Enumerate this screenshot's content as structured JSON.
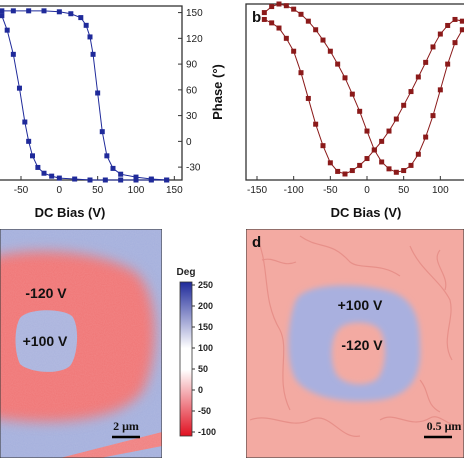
{
  "chart_data": [
    {
      "panel": "a",
      "type": "line",
      "xlabel": "DC Bias (V)",
      "xticks": [
        "-50",
        "0",
        "50",
        "100",
        "150"
      ],
      "xlim": [
        -80,
        160
      ],
      "ylim": [
        -30,
        150
      ],
      "color": "#1f2a9a",
      "series": [
        {
          "name": "",
          "x": [
            140,
            120,
            100,
            80,
            70,
            62,
            56,
            50,
            44,
            40,
            35,
            28,
            15,
            0,
            -20,
            -40,
            -60,
            -75
          ],
          "y": [
            -30,
            -29,
            -27,
            -24,
            -18,
            -5,
            20,
            60,
            100,
            118,
            130,
            138,
            142,
            144,
            145,
            145,
            145,
            145
          ]
        },
        {
          "name": "",
          "x": [
            -75,
            -68,
            -60,
            -52,
            -45,
            -40,
            -35,
            -28,
            -20,
            -10,
            0,
            20,
            40,
            60,
            80,
            100,
            120,
            140
          ],
          "y": [
            140,
            125,
            100,
            65,
            30,
            10,
            -5,
            -17,
            -23,
            -26,
            -28,
            -29,
            -30,
            -30,
            -30,
            -30,
            -30,
            -30
          ]
        }
      ]
    },
    {
      "panel": "b",
      "label": "b",
      "type": "line",
      "xlabel": "DC Bias (V)",
      "ylabel": "Phase (°)",
      "yticks": [
        "150",
        "120",
        "90",
        "60",
        "30",
        "0",
        "-30"
      ],
      "xticks": [
        "-150",
        "-100",
        "-50",
        "0",
        "50",
        "100"
      ],
      "xlim": [
        -165,
        135
      ],
      "ylim": [
        -45,
        160
      ],
      "color": "#8b1a1a",
      "series": [
        {
          "name": "",
          "x": [
            -140,
            -130,
            -120,
            -110,
            -100,
            -90,
            -80,
            -70,
            -60,
            -50,
            -40,
            -30,
            -20,
            -10,
            0,
            10,
            20,
            30,
            40,
            50,
            60,
            70,
            80,
            90,
            100,
            110,
            120,
            130
          ],
          "y": [
            150,
            157,
            160,
            158,
            154,
            148,
            140,
            130,
            118,
            105,
            90,
            74,
            55,
            35,
            12,
            -10,
            -24,
            -32,
            -36,
            -34,
            -28,
            -15,
            5,
            30,
            60,
            90,
            115,
            130
          ]
        },
        {
          "name": "",
          "x": [
            130,
            120,
            110,
            100,
            90,
            80,
            70,
            60,
            50,
            40,
            30,
            20,
            10,
            0,
            -10,
            -20,
            -30,
            -40,
            -50,
            -60,
            -70,
            -80,
            -90,
            -100,
            -110,
            -120,
            -130,
            -140
          ],
          "y": [
            140,
            142,
            135,
            125,
            110,
            92,
            75,
            58,
            42,
            26,
            12,
            0,
            -10,
            -20,
            -28,
            -34,
            -38,
            -35,
            -25,
            -5,
            20,
            50,
            80,
            105,
            120,
            132,
            138,
            142
          ]
        }
      ]
    },
    {
      "panel": "c",
      "type": "heatmap",
      "annotations": [
        "-120 V",
        "+100 V"
      ],
      "scalebar": "2 μm",
      "colorbar": {
        "label": "Deg",
        "ticks": [
          "250",
          "200",
          "150",
          "100",
          "50",
          "0",
          "-50",
          "-100"
        ],
        "range": [
          -100,
          250
        ]
      },
      "colors": {
        "blue_domain": "#aab3dd",
        "red_domain": "#f07070"
      }
    },
    {
      "panel": "d",
      "label": "d",
      "type": "heatmap",
      "annotations": [
        "+100 V",
        "-120 V"
      ],
      "scalebar": "0.5 μm",
      "colors": {
        "background": "#f3aaa2",
        "blue_domain": "#a9b0df"
      }
    }
  ]
}
